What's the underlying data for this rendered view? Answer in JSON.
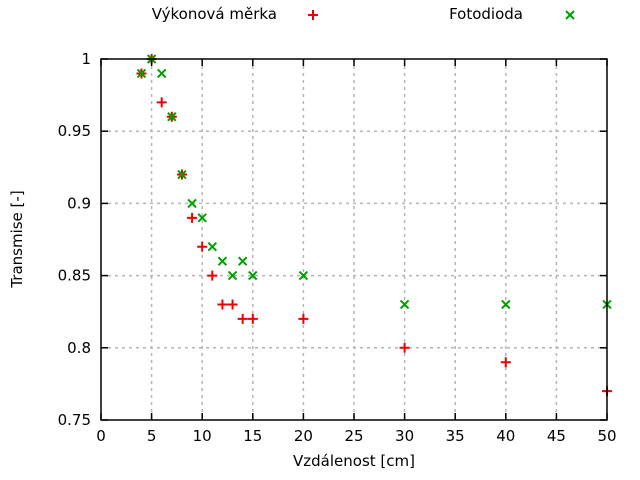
{
  "chart_data": {
    "type": "scatter",
    "title": "",
    "xlabel": "Vzdálenost [cm]",
    "ylabel": "Transmise [-]",
    "xlim": [
      0,
      50
    ],
    "ylim": [
      0.75,
      1.0
    ],
    "grid": true,
    "legend_position": "above-plot-horizontal",
    "xticks": [
      {
        "value": 0,
        "label": "0"
      },
      {
        "value": 5,
        "label": "5"
      },
      {
        "value": 10,
        "label": "10"
      },
      {
        "value": 15,
        "label": "15"
      },
      {
        "value": 20,
        "label": "20"
      },
      {
        "value": 25,
        "label": "25"
      },
      {
        "value": 30,
        "label": "30"
      },
      {
        "value": 35,
        "label": "35"
      },
      {
        "value": 40,
        "label": "40"
      },
      {
        "value": 45,
        "label": "45"
      },
      {
        "value": 50,
        "label": "50"
      }
    ],
    "yticks": [
      {
        "value": 0.75,
        "label": "0.75"
      },
      {
        "value": 0.8,
        "label": "0.8"
      },
      {
        "value": 0.85,
        "label": "0.85"
      },
      {
        "value": 0.9,
        "label": "0.9"
      },
      {
        "value": 0.95,
        "label": "0.95"
      },
      {
        "value": 1.0,
        "label": "1"
      }
    ],
    "series": [
      {
        "name": "Výkonová měrka",
        "marker": "plus",
        "color": "#ee0000",
        "points": [
          [
            4,
            0.99
          ],
          [
            5,
            1.0
          ],
          [
            6,
            0.97
          ],
          [
            7,
            0.96
          ],
          [
            8,
            0.92
          ],
          [
            9,
            0.89
          ],
          [
            10,
            0.87
          ],
          [
            11,
            0.85
          ],
          [
            12,
            0.83
          ],
          [
            13,
            0.83
          ],
          [
            14,
            0.82
          ],
          [
            15,
            0.82
          ],
          [
            20,
            0.82
          ],
          [
            30,
            0.8
          ],
          [
            40,
            0.79
          ],
          [
            50,
            0.77
          ]
        ]
      },
      {
        "name": "Fotodioda",
        "marker": "cross",
        "color": "#00a000",
        "points": [
          [
            4,
            0.99
          ],
          [
            5,
            1.0
          ],
          [
            6,
            0.99
          ],
          [
            7,
            0.96
          ],
          [
            8,
            0.92
          ],
          [
            9,
            0.9
          ],
          [
            10,
            0.89
          ],
          [
            11,
            0.87
          ],
          [
            12,
            0.86
          ],
          [
            13,
            0.85
          ],
          [
            14,
            0.86
          ],
          [
            15,
            0.85
          ],
          [
            20,
            0.85
          ],
          [
            30,
            0.83
          ],
          [
            40,
            0.83
          ],
          [
            50,
            0.83
          ]
        ]
      }
    ],
    "colors": {
      "background": "#ffffff",
      "axis": "#000000",
      "grid": "#b5b5b5",
      "text": "#000000"
    }
  }
}
